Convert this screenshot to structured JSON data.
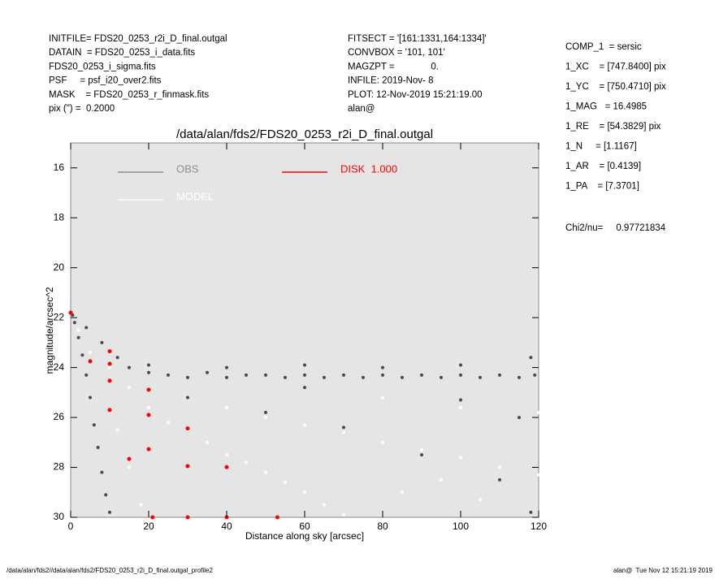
{
  "header": {
    "left": [
      "INITFILE= FDS20_0253_r2i_D_final.outgal",
      "DATAIN  = FDS20_0253_i_data.fits",
      "FDS20_0253_i_sigma.fits",
      "PSF     = psf_i20_over2.fits",
      "MASK    = FDS20_0253_r_finmask.fits",
      "pix (\") =  0.2000"
    ],
    "middle": [
      "FITSECT = '[161:1331,164:1334]'",
      "CONVBOX = '101, 101'",
      "MAGZPT =              0.",
      "INFILE: 2019-Nov- 8",
      "PLOT: 12-Nov-2019 15:21:19.00",
      "alan@"
    ],
    "right": [
      "COMP_1  = sersic",
      "1_XC    = [747.8400] pix",
      "1_YC    = [750.4710] pix",
      "1_MAG   = 16.4985",
      "1_RE    = [54.3829] pix",
      "1_N     = [1.1167]",
      "1_AR    = [0.4139]",
      "1_PA    = [7.3701]",
      "Chi2/nu=     0.97721834"
    ]
  },
  "footer": {
    "left": "/data/alan/fds2//data/alan/fds2/FDS20_0253_r2i_D_final.outgal_profile2",
    "right": "alan@  Tue Nov 12 15:21:19 2019"
  },
  "chart_data": {
    "type": "scatter",
    "title": "/data/alan/fds2/FDS20_0253_r2i_D_final.outgal",
    "xlabel": "Distance along sky [arcsec]",
    "ylabel": "magnitude/arcsec^2",
    "xlim": [
      0,
      120
    ],
    "ylim": [
      15,
      30
    ],
    "y_inverted": true,
    "xticks": [
      0,
      20,
      40,
      60,
      80,
      100,
      120
    ],
    "yticks": [
      16,
      18,
      20,
      22,
      24,
      26,
      28,
      30
    ],
    "background": "#e5e5e5",
    "series": [
      {
        "name": "OBS",
        "color": "#4a4a4a",
        "legend_color": "#8c8c8c",
        "x": [
          0.5,
          1,
          2,
          3,
          4,
          5,
          6,
          7,
          8,
          9,
          10,
          4,
          8,
          12,
          15,
          20,
          25,
          30,
          35,
          40,
          45,
          50,
          55,
          60,
          65,
          70,
          75,
          80,
          85,
          90,
          95,
          100,
          105,
          110,
          115,
          119,
          20,
          40,
          60,
          80,
          100,
          118,
          30,
          50,
          70,
          90,
          110,
          118,
          60,
          100,
          115
        ],
        "values": [
          21.9,
          22.2,
          22.8,
          23.5,
          24.3,
          25.2,
          26.3,
          27.2,
          28.2,
          29.1,
          29.8,
          22.4,
          23.0,
          23.6,
          24.0,
          24.2,
          24.3,
          24.4,
          24.2,
          24.4,
          24.3,
          24.3,
          24.4,
          24.3,
          24.4,
          24.3,
          24.4,
          24.3,
          24.4,
          24.3,
          24.4,
          24.3,
          24.4,
          24.3,
          24.4,
          24.3,
          23.9,
          24.0,
          23.9,
          24.0,
          23.9,
          23.6,
          25.2,
          25.8,
          26.4,
          27.5,
          28.5,
          29.8,
          24.8,
          25.3,
          26.0
        ]
      },
      {
        "name": "MODEL",
        "color": "#ffffff",
        "legend_color": "#ffffff",
        "x": [
          2,
          5,
          10,
          15,
          20,
          25,
          30,
          35,
          40,
          45,
          50,
          55,
          60,
          65,
          70,
          40,
          50,
          60,
          70,
          80,
          90,
          100,
          110,
          120,
          80,
          100,
          120,
          85,
          95,
          105,
          12,
          15,
          18
        ],
        "values": [
          22.5,
          23.4,
          24.0,
          24.8,
          25.6,
          26.2,
          26.5,
          27.0,
          27.5,
          27.8,
          28.2,
          28.6,
          29.0,
          29.5,
          29.9,
          25.6,
          26.0,
          26.3,
          26.6,
          27.0,
          27.3,
          27.6,
          28.0,
          28.3,
          25.2,
          25.6,
          25.8,
          29.0,
          28.5,
          29.3,
          26.5,
          28.0,
          29.5
        ]
      },
      {
        "name": "DISK  1.000",
        "color": "#ff0000",
        "legend_color": "#ff0000",
        "x": [
          0,
          5,
          10,
          15,
          21,
          10,
          20,
          30,
          10,
          20,
          30,
          40,
          10,
          20,
          30,
          40,
          53
        ],
        "values": [
          21.8,
          23.75,
          25.7,
          27.66,
          30,
          24.53,
          27.27,
          30,
          23.85,
          25.9,
          27.95,
          30,
          23.35,
          24.89,
          26.44,
          27.99,
          30
        ]
      }
    ]
  }
}
